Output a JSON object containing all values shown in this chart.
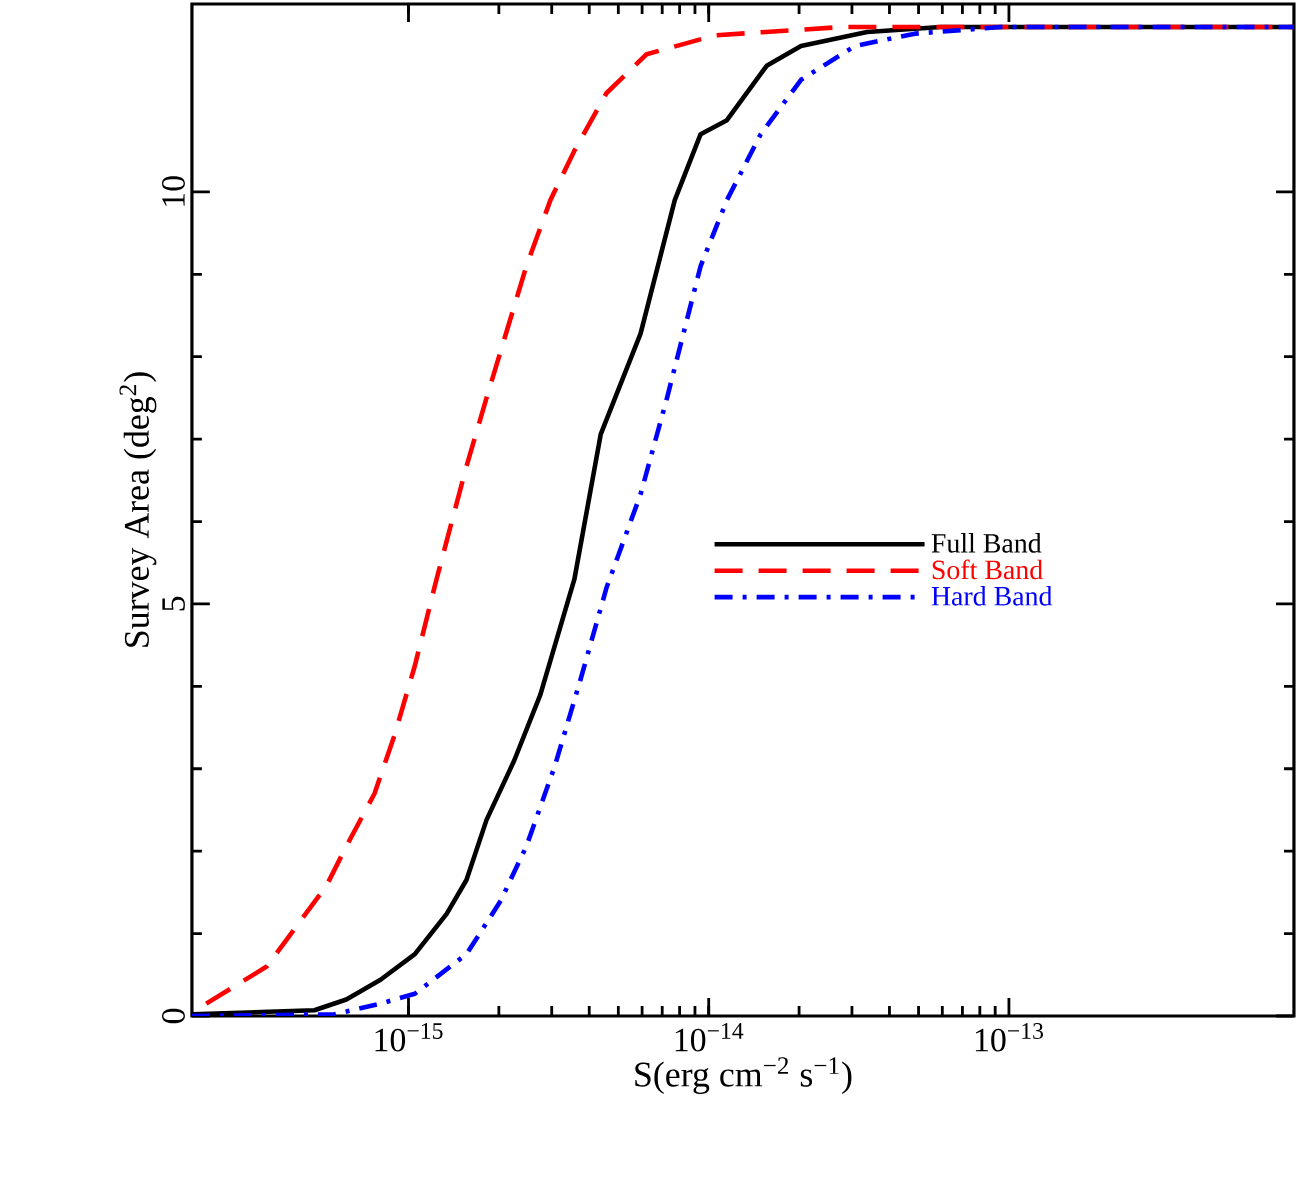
{
  "chart_data": {
    "type": "line",
    "xlabel": "S(erg cm$^{−2}$ s$^{−1}$)",
    "ylabel": "Survey Area (deg$^{2}$)",
    "log": "x",
    "xlim": [
      1.9e-16,
      8.9e-13
    ],
    "ylim": [
      0,
      12.28
    ],
    "xticks": [
      {
        "value": 1e-15,
        "label": "10$^{−15}$"
      },
      {
        "value": 1e-14,
        "label": "10$^{−14}$"
      },
      {
        "value": 1e-13,
        "label": "10$^{−13}$"
      }
    ],
    "yticks": [
      0,
      5,
      10
    ],
    "legend": "right",
    "grid": false,
    "marker": "none",
    "series": [
      {
        "name": "Full Band",
        "color": "#000000",
        "line_style": "solid",
        "x": [
          1.9e-16,
          4.86e-16,
          6.21e-16,
          8.07e-16,
          1.05e-15,
          1.34e-15,
          1.56e-15,
          1.82e-15,
          2.25e-15,
          2.75e-15,
          3.57e-15,
          4.37e-15,
          5.93e-15,
          7.71e-15,
          9.4e-15,
          1.15e-14,
          1.56e-14,
          2.03e-14,
          3.37e-14,
          5.93e-14,
          8.9e-13
        ],
        "values": [
          0.02,
          0.07,
          0.2,
          0.44,
          0.75,
          1.24,
          1.65,
          2.38,
          3.1,
          3.9,
          5.3,
          7.06,
          8.28,
          9.9,
          10.7,
          10.87,
          11.53,
          11.77,
          11.94,
          12,
          12
        ]
      },
      {
        "name": "Soft Band",
        "color": "#ff0000",
        "line_style": "dashed",
        "x": [
          2.12e-16,
          3.37e-16,
          5.33e-16,
          6.21e-16,
          7.71e-16,
          8.97e-16,
          1.05e-15,
          1.24e-15,
          1.56e-15,
          1.82e-15,
          2.12e-15,
          2.47e-15,
          2.97e-15,
          3.57e-15,
          4.57e-15,
          6.21e-15,
          1.05e-14,
          2.75e-14,
          8.9e-13
        ],
        "values": [
          0.15,
          0.6,
          1.58,
          2.06,
          2.7,
          3.4,
          4.25,
          5.3,
          6.67,
          7.5,
          8.3,
          9.1,
          9.9,
          10.5,
          11.2,
          11.67,
          11.9,
          12,
          12
        ]
      },
      {
        "name": "Hard Band",
        "color": "#0000ff",
        "line_style": "dashdot",
        "x": [
          1.9e-16,
          5.66e-16,
          8.07e-16,
          1.05e-15,
          1.56e-15,
          2.03e-15,
          2.47e-15,
          3.07e-15,
          3.74e-15,
          4.57e-15,
          5.93e-15,
          7.24e-15,
          9.4e-15,
          1.15e-14,
          1.49e-14,
          2.03e-14,
          3.07e-14,
          4.86e-14,
          9.4e-14,
          8.9e-13
        ],
        "values": [
          0,
          0.02,
          0.15,
          0.27,
          0.75,
          1.4,
          2.06,
          3.03,
          4.08,
          5.2,
          6.33,
          7.48,
          9.1,
          9.9,
          10.7,
          11.36,
          11.77,
          11.92,
          12,
          12
        ]
      }
    ]
  }
}
